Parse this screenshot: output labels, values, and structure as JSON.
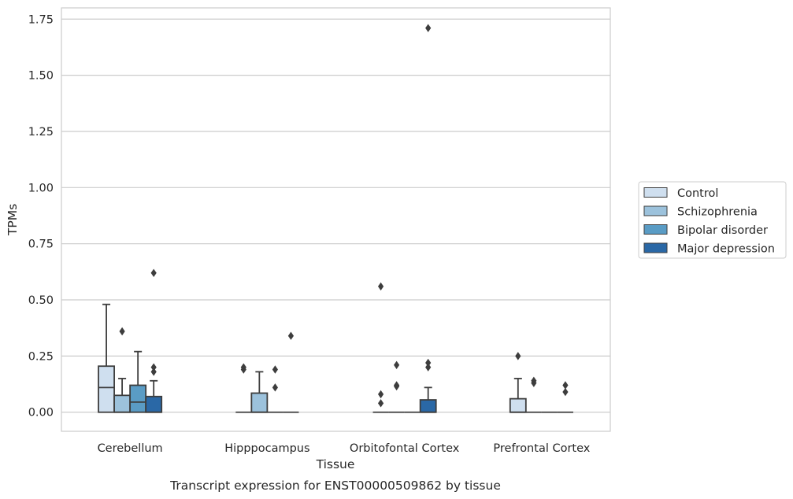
{
  "caption": "Transcript expression for ENST00000509862 by tissue",
  "chart_data": {
    "type": "box",
    "title": "",
    "xlabel": "Tissue",
    "ylabel": "TPMs",
    "ylim": [
      -0.085,
      1.8
    ],
    "yticks": [
      0.0,
      0.25,
      0.5,
      0.75,
      1.0,
      1.25,
      1.5,
      1.75
    ],
    "ytick_labels": [
      "0.00",
      "0.25",
      "0.50",
      "0.75",
      "1.00",
      "1.25",
      "1.50",
      "1.75"
    ],
    "grid": "horizontal",
    "legend_position": "right",
    "categories": [
      "Cerebellum",
      "Hipppocampus",
      "Orbitofontal Cortex",
      "Prefrontal Cortex"
    ],
    "series": [
      {
        "name": "Control",
        "color": "#cfdfef",
        "boxes": [
          {
            "q1": 0.0,
            "median": 0.11,
            "q3": 0.205,
            "whisker_low": 0.0,
            "whisker_high": 0.48,
            "outliers": []
          },
          {
            "q1": 0.0,
            "median": 0.0,
            "q3": 0.0,
            "whisker_low": 0.0,
            "whisker_high": 0.0,
            "outliers": [
              0.19,
              0.2
            ]
          },
          {
            "q1": 0.0,
            "median": 0.0,
            "q3": 0.0,
            "whisker_low": 0.0,
            "whisker_high": 0.0,
            "outliers": [
              0.56,
              0.08,
              0.04
            ]
          },
          {
            "q1": 0.0,
            "median": 0.0,
            "q3": 0.06,
            "whisker_low": 0.0,
            "whisker_high": 0.15,
            "outliers": [
              0.25
            ]
          }
        ]
      },
      {
        "name": "Schizophrenia",
        "color": "#9cc2dc",
        "boxes": [
          {
            "q1": 0.0,
            "median": 0.0,
            "q3": 0.075,
            "whisker_low": 0.0,
            "whisker_high": 0.15,
            "outliers": [
              0.36
            ]
          },
          {
            "q1": 0.0,
            "median": 0.0,
            "q3": 0.085,
            "whisker_low": 0.0,
            "whisker_high": 0.18,
            "outliers": []
          },
          {
            "q1": 0.0,
            "median": 0.0,
            "q3": 0.0,
            "whisker_low": 0.0,
            "whisker_high": 0.0,
            "outliers": [
              0.21,
              0.12,
              0.115
            ]
          },
          {
            "q1": 0.0,
            "median": 0.0,
            "q3": 0.0,
            "whisker_low": 0.0,
            "whisker_high": 0.0,
            "outliers": [
              0.14,
              0.13
            ]
          }
        ]
      },
      {
        "name": "Bipolar disorder",
        "color": "#5a9cc5",
        "boxes": [
          {
            "q1": 0.0,
            "median": 0.045,
            "q3": 0.12,
            "whisker_low": 0.0,
            "whisker_high": 0.27,
            "outliers": []
          },
          {
            "q1": 0.0,
            "median": 0.0,
            "q3": 0.0,
            "whisker_low": 0.0,
            "whisker_high": 0.0,
            "outliers": [
              0.19,
              0.11
            ]
          },
          {
            "q1": 0.0,
            "median": 0.0,
            "q3": 0.0,
            "whisker_low": 0.0,
            "whisker_high": 0.0,
            "outliers": []
          },
          {
            "q1": 0.0,
            "median": 0.0,
            "q3": 0.0,
            "whisker_low": 0.0,
            "whisker_high": 0.0,
            "outliers": []
          }
        ]
      },
      {
        "name": "Major depression",
        "color": "#2a68a6",
        "boxes": [
          {
            "q1": 0.0,
            "median": 0.0,
            "q3": 0.07,
            "whisker_low": 0.0,
            "whisker_high": 0.14,
            "outliers": [
              0.62,
              0.2,
              0.18
            ]
          },
          {
            "q1": 0.0,
            "median": 0.0,
            "q3": 0.0,
            "whisker_low": 0.0,
            "whisker_high": 0.0,
            "outliers": [
              0.34
            ]
          },
          {
            "q1": 0.0,
            "median": 0.0,
            "q3": 0.055,
            "whisker_low": 0.0,
            "whisker_high": 0.11,
            "outliers": [
              1.71,
              0.22,
              0.2
            ]
          },
          {
            "q1": 0.0,
            "median": 0.0,
            "q3": 0.0,
            "whisker_low": 0.0,
            "whisker_high": 0.0,
            "outliers": [
              0.12,
              0.09
            ]
          }
        ]
      }
    ]
  }
}
